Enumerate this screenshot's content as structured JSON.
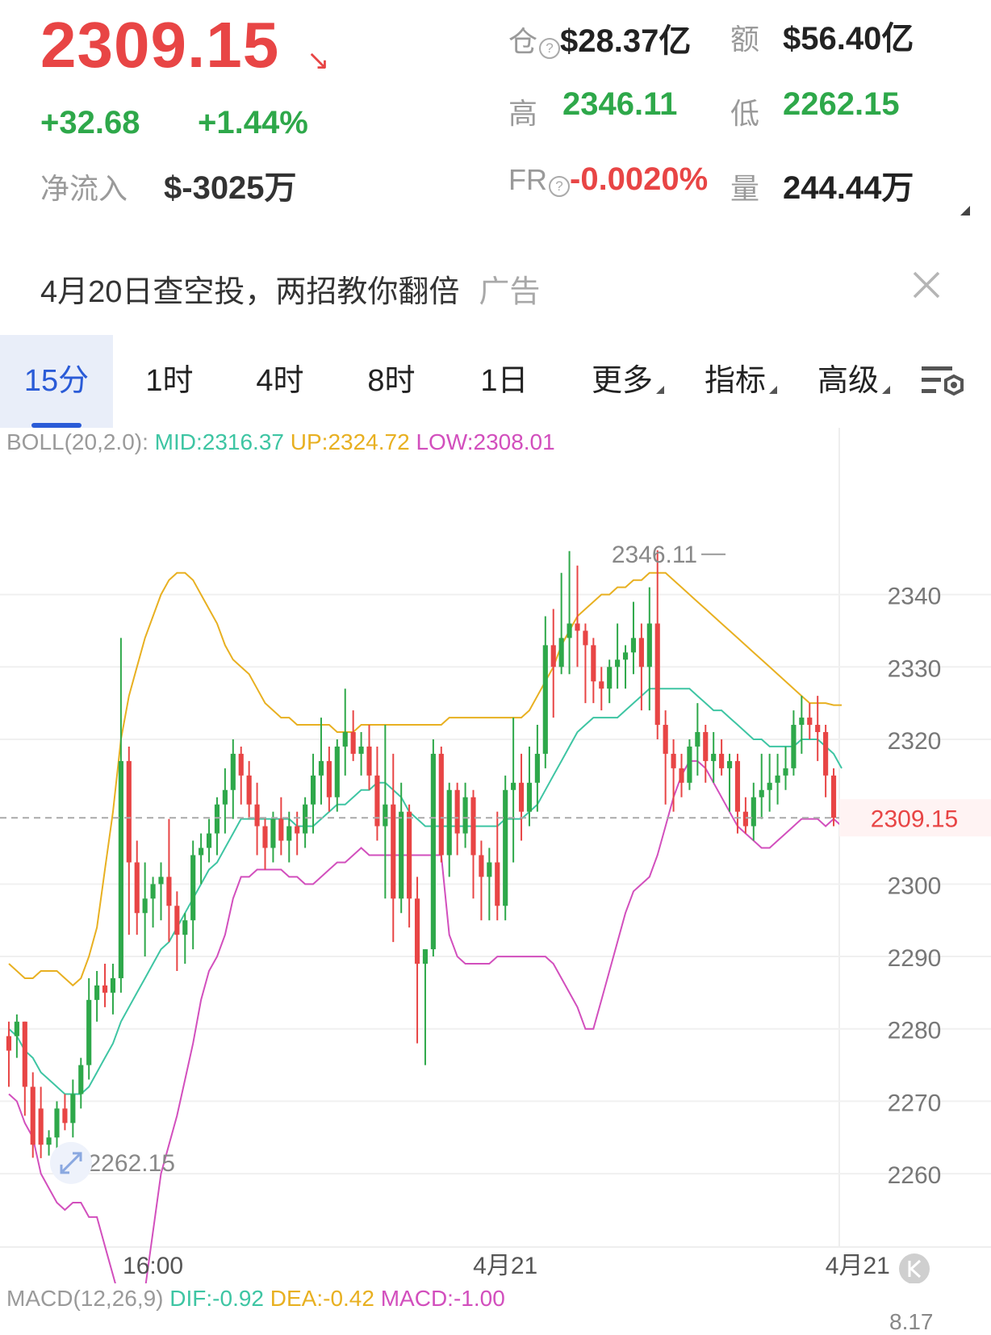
{
  "header": {
    "price": "2309.15",
    "change_abs": "+32.68",
    "change_pct": "+1.44%",
    "net_flow_label": "净流入",
    "net_flow_value": "$-3025万",
    "open_interest_label": "仓",
    "open_interest_value": "$28.37亿",
    "turnover_label": "额",
    "turnover_value": "$56.40亿",
    "high_label": "高",
    "high_value": "2346.11",
    "low_label": "低",
    "low_value": "2262.15",
    "fr_label": "FR",
    "fr_value": "-0.0020%",
    "volume_label": "量",
    "volume_value": "244.44万"
  },
  "ad": {
    "text": "4月20日查空投，两招教你翻倍",
    "tag": "广告"
  },
  "tabs": [
    {
      "label": "15分",
      "active": true
    },
    {
      "label": "1时"
    },
    {
      "label": "4时"
    },
    {
      "label": "8时"
    },
    {
      "label": "1日"
    },
    {
      "label": "更多"
    },
    {
      "label": "指标"
    },
    {
      "label": "高级"
    }
  ],
  "indicator": {
    "name": "BOLL(20,2.0):",
    "mid": "MID:2316.37",
    "up": "UP:2324.72",
    "low": "LOW:2308.01"
  },
  "macd": {
    "name": "MACD(12,26,9)",
    "dif": "DIF:-0.92",
    "dea": "DEA:-0.42",
    "macd": "MACD:-1.00",
    "axis_partial": "8.17"
  },
  "colors": {
    "up": "#2ea84a",
    "down": "#e84545",
    "mid": "#3ec5a3",
    "upper": "#e8b021",
    "lower": "#d24fbd",
    "accent": "#2a5bd7"
  },
  "chart_data": {
    "type": "candlestick",
    "y_ticks": [
      "2340",
      "2330",
      "2320",
      "2300",
      "2290",
      "2280",
      "2270",
      "2260"
    ],
    "ylim": [
      2256,
      2353
    ],
    "x_ticks": [
      {
        "label": "16:00",
        "index": 18
      },
      {
        "label": "4月21",
        "index": 62
      },
      {
        "label": "4月21",
        "index": 106
      }
    ],
    "current_price": "2309.15",
    "max_marker": {
      "label": "2346.11",
      "index": 90,
      "value": 2346.11
    },
    "min_marker": {
      "label": "2262.15",
      "index": 6,
      "value": 2262.15
    },
    "candles": [
      [
        2279,
        2281,
        2272,
        2277
      ],
      [
        2279,
        2282,
        2276,
        2281
      ],
      [
        2281,
        2281,
        2268,
        2272
      ],
      [
        2272,
        2274,
        2262.2,
        2264
      ],
      [
        2269,
        2272,
        2262.15,
        2264
      ],
      [
        2264,
        2266,
        2262.5,
        2265
      ],
      [
        2265,
        2270,
        2263,
        2269
      ],
      [
        2269,
        2271,
        2266,
        2267
      ],
      [
        2267,
        2273,
        2265,
        2271
      ],
      [
        2271,
        2276,
        2269,
        2275
      ],
      [
        2275,
        2287,
        2273,
        2284
      ],
      [
        2284,
        2288,
        2281,
        2286
      ],
      [
        2286,
        2289,
        2283,
        2285
      ],
      [
        2285,
        2289,
        2282,
        2287
      ],
      [
        2287,
        2334,
        2285,
        2317
      ],
      [
        2317,
        2319,
        2293,
        2303
      ],
      [
        2303,
        2306,
        2293,
        2296
      ],
      [
        2296,
        2303,
        2290,
        2298
      ],
      [
        2298,
        2301,
        2294,
        2300
      ],
      [
        2300,
        2303,
        2295,
        2301
      ],
      [
        2301,
        2309,
        2292,
        2297
      ],
      [
        2297,
        2299,
        2288,
        2293
      ],
      [
        2293,
        2296,
        2289,
        2295
      ],
      [
        2295,
        2306,
        2291,
        2304
      ],
      [
        2304,
        2307,
        2300,
        2305
      ],
      [
        2305,
        2309,
        2303,
        2307
      ],
      [
        2307,
        2312,
        2304,
        2311
      ],
      [
        2311,
        2316,
        2307,
        2313
      ],
      [
        2313,
        2320,
        2309,
        2318
      ],
      [
        2318,
        2319,
        2311,
        2315
      ],
      [
        2315,
        2317,
        2309,
        2311
      ],
      [
        2311,
        2314,
        2304,
        2308
      ],
      [
        2308,
        2309,
        2302,
        2305
      ],
      [
        2305,
        2310,
        2303,
        2309
      ],
      [
        2309,
        2312,
        2304,
        2306
      ],
      [
        2306,
        2310,
        2303,
        2308
      ],
      [
        2308,
        2310,
        2304,
        2307
      ],
      [
        2307,
        2312,
        2305,
        2311
      ],
      [
        2311,
        2318,
        2307,
        2315
      ],
      [
        2315,
        2323,
        2311,
        2317
      ],
      [
        2317,
        2319,
        2310,
        2312
      ],
      [
        2312,
        2320,
        2310,
        2319
      ],
      [
        2319,
        2327,
        2315,
        2321
      ],
      [
        2321,
        2324,
        2317,
        2318
      ],
      [
        2318,
        2321,
        2315,
        2319
      ],
      [
        2319,
        2322,
        2313,
        2315
      ],
      [
        2315,
        2319,
        2306,
        2308
      ],
      [
        2308,
        2322,
        2298,
        2311
      ],
      [
        2311,
        2318,
        2292,
        2298
      ],
      [
        2298,
        2314,
        2296,
        2310
      ],
      [
        2310,
        2311,
        2294,
        2298
      ],
      [
        2298,
        2301,
        2278,
        2289
      ],
      [
        2289,
        2291,
        2275,
        2291
      ],
      [
        2291,
        2320,
        2290,
        2318
      ],
      [
        2318,
        2319,
        2303,
        2304
      ],
      [
        2304,
        2314,
        2301,
        2313
      ],
      [
        2313,
        2314,
        2304,
        2307
      ],
      [
        2307,
        2314,
        2305,
        2312
      ],
      [
        2312,
        2313,
        2298,
        2304
      ],
      [
        2304,
        2306,
        2295,
        2301
      ],
      [
        2301,
        2305,
        2295,
        2303
      ],
      [
        2303,
        2310,
        2295,
        2297
      ],
      [
        2297,
        2315,
        2295,
        2313
      ],
      [
        2313,
        2323,
        2303,
        2314
      ],
      [
        2314,
        2318,
        2306,
        2310
      ],
      [
        2310,
        2319,
        2308,
        2314
      ],
      [
        2314,
        2322,
        2310,
        2318
      ],
      [
        2318,
        2337,
        2316,
        2333
      ],
      [
        2333,
        2338,
        2323,
        2330
      ],
      [
        2330,
        2343,
        2329,
        2334
      ],
      [
        2334,
        2346,
        2329,
        2336
      ],
      [
        2336,
        2344,
        2330,
        2335
      ],
      [
        2335,
        2336,
        2325,
        2333
      ],
      [
        2333,
        2334,
        2325,
        2328
      ],
      [
        2328,
        2330,
        2324,
        2327
      ],
      [
        2327,
        2331,
        2325,
        2330
      ],
      [
        2330,
        2336,
        2327,
        2331
      ],
      [
        2331,
        2333,
        2327,
        2332
      ],
      [
        2332,
        2339,
        2329,
        2334
      ],
      [
        2334,
        2336,
        2324,
        2330
      ],
      [
        2330,
        2341,
        2324,
        2336
      ],
      [
        2336,
        2346.11,
        2320,
        2322
      ],
      [
        2322,
        2324,
        2311,
        2318
      ],
      [
        2318,
        2320,
        2310,
        2316
      ],
      [
        2316,
        2318,
        2312,
        2314
      ],
      [
        2314,
        2320,
        2313,
        2319
      ],
      [
        2319,
        2325,
        2315,
        2321
      ],
      [
        2321,
        2322,
        2314,
        2317
      ],
      [
        2317,
        2321,
        2314,
        2318
      ],
      [
        2318,
        2320,
        2315,
        2316
      ],
      [
        2316,
        2318,
        2310,
        2317
      ],
      [
        2317,
        2318,
        2307,
        2310
      ],
      [
        2310,
        2312,
        2307,
        2308
      ],
      [
        2308,
        2314,
        2306,
        2312
      ],
      [
        2312,
        2318,
        2309,
        2313
      ],
      [
        2313,
        2318,
        2310,
        2314
      ],
      [
        2314,
        2318,
        2311,
        2315
      ],
      [
        2315,
        2319,
        2313,
        2316
      ],
      [
        2316,
        2324,
        2315,
        2322
      ],
      [
        2322,
        2326,
        2318,
        2323
      ],
      [
        2323,
        2325,
        2320,
        2322
      ],
      [
        2322,
        2326,
        2317,
        2321
      ],
      [
        2321,
        2322,
        2312,
        2315
      ],
      [
        2315,
        2316,
        2308,
        2309.15
      ]
    ],
    "boll_mid": [
      2280,
      2279,
      2277,
      2276,
      2274,
      2273,
      2272,
      2271,
      2271,
      2271,
      2272,
      2274,
      2276,
      2278,
      2281,
      2283,
      2285,
      2287,
      2289,
      2291,
      2292,
      2294,
      2296,
      2298,
      2300,
      2302,
      2303,
      2305,
      2307,
      2309,
      2309,
      2309,
      2309,
      2309,
      2309,
      2309,
      2308,
      2308,
      2308,
      2309,
      2310,
      2311,
      2311,
      2312,
      2313,
      2313,
      2314,
      2314,
      2313,
      2312,
      2310,
      2309,
      2308,
      2308,
      2308,
      2308,
      2308,
      2308,
      2308,
      2308,
      2308,
      2308,
      2309,
      2309,
      2309,
      2310,
      2311,
      2313,
      2315,
      2317,
      2319,
      2321,
      2322,
      2323,
      2323,
      2323,
      2323,
      2324,
      2325,
      2326,
      2327,
      2327,
      2327,
      2327,
      2327,
      2327,
      2326,
      2325,
      2324,
      2324,
      2323,
      2322,
      2321,
      2320,
      2320,
      2319,
      2319,
      2319,
      2319,
      2320,
      2320,
      2320,
      2319,
      2318,
      2316
    ],
    "boll_up": [
      2289,
      2288,
      2287,
      2287,
      2288,
      2288,
      2288,
      2287,
      2286,
      2287,
      2290,
      2294,
      2302,
      2310,
      2320,
      2326,
      2330,
      2334,
      2337,
      2340,
      2342,
      2343,
      2343,
      2342,
      2340,
      2338,
      2336,
      2333,
      2331,
      2330,
      2329,
      2327,
      2325,
      2324,
      2323,
      2323,
      2322,
      2322,
      2322,
      2322,
      2322,
      2321,
      2321,
      2321,
      2322,
      2322,
      2322,
      2322,
      2322,
      2322,
      2322,
      2322,
      2322,
      2322,
      2322,
      2323,
      2323,
      2323,
      2323,
      2323,
      2323,
      2323,
      2323,
      2323,
      2323,
      2324,
      2326,
      2328,
      2330,
      2333,
      2335,
      2337,
      2338,
      2339,
      2340,
      2340,
      2341,
      2341,
      2342,
      2342,
      2343,
      2343,
      2343,
      2342,
      2341,
      2340,
      2339,
      2338,
      2337,
      2336,
      2335,
      2334,
      2333,
      2332,
      2331,
      2330,
      2329,
      2328,
      2327,
      2326,
      2325,
      2325,
      2325,
      2324.72,
      2324.72
    ],
    "boll_low": [
      2271,
      2270,
      2267,
      2265,
      2260,
      2258,
      2256,
      2255,
      2256,
      2256,
      2254,
      2254,
      2250,
      2246,
      2242,
      2240,
      2240,
      2244,
      2252,
      2260,
      2264,
      2268,
      2273,
      2278,
      2284,
      2288,
      2290,
      2293,
      2298,
      2301,
      2301,
      2302,
      2302,
      2302,
      2302,
      2301,
      2301,
      2300,
      2300,
      2301,
      2302,
      2303,
      2303,
      2304,
      2305,
      2304,
      2304,
      2304,
      2304,
      2304,
      2304,
      2304,
      2304,
      2304,
      2304,
      2293,
      2290,
      2289,
      2289,
      2289,
      2289,
      2290,
      2290,
      2290,
      2290,
      2290,
      2290,
      2290,
      2289,
      2287,
      2285,
      2283,
      2280,
      2280,
      2284,
      2288,
      2292,
      2296,
      2299,
      2300,
      2301,
      2304,
      2308,
      2312,
      2315,
      2317,
      2317,
      2316,
      2314,
      2312,
      2310,
      2308,
      2307,
      2306,
      2305,
      2305,
      2306,
      2307,
      2308,
      2309,
      2309,
      2309,
      2308,
      2309,
      2308.01
    ]
  }
}
